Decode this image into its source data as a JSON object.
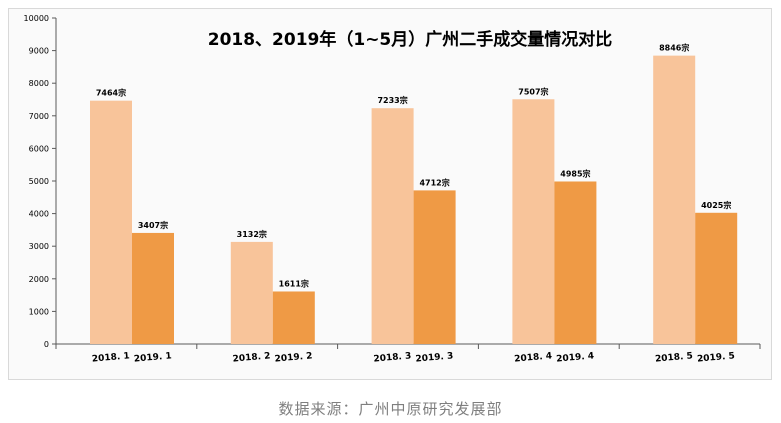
{
  "chart_data": {
    "type": "bar",
    "title": "2018、2019年（1~5月）广州二手成交量情况对比",
    "ylim": [
      0,
      10000
    ],
    "yticks": [
      0,
      1000,
      2000,
      3000,
      4000,
      5000,
      6000,
      7000,
      8000,
      9000,
      10000
    ],
    "grid": false,
    "legend": "none",
    "groups": [
      {
        "bars": [
          {
            "label": "2018. 1",
            "value": 7464,
            "data_label": "7464宗"
          },
          {
            "label": "2019. 1",
            "value": 3407,
            "data_label": "3407宗"
          }
        ]
      },
      {
        "bars": [
          {
            "label": "2018. 2",
            "value": 3132,
            "data_label": "3132宗"
          },
          {
            "label": "2019. 2",
            "value": 1611,
            "data_label": "1611宗"
          }
        ]
      },
      {
        "bars": [
          {
            "label": "2018. 3",
            "value": 7233,
            "data_label": "7233宗"
          },
          {
            "label": "2019. 3",
            "value": 4712,
            "data_label": "4712宗"
          }
        ]
      },
      {
        "bars": [
          {
            "label": "2018. 4",
            "value": 7507,
            "data_label": "7507宗"
          },
          {
            "label": "2019. 4",
            "value": 4985,
            "data_label": "4985宗"
          }
        ]
      },
      {
        "bars": [
          {
            "label": "2018. 5",
            "value": 8846,
            "data_label": "8846宗"
          },
          {
            "label": "2019. 5",
            "value": 4025,
            "data_label": "4025宗"
          }
        ]
      }
    ],
    "colors": {
      "year_2018": "#f8c49a",
      "year_2019": "#ef9a45",
      "axis": "#595959",
      "text": "#000000"
    }
  },
  "footer": {
    "source": "数据来源：广州中原研究发展部"
  }
}
